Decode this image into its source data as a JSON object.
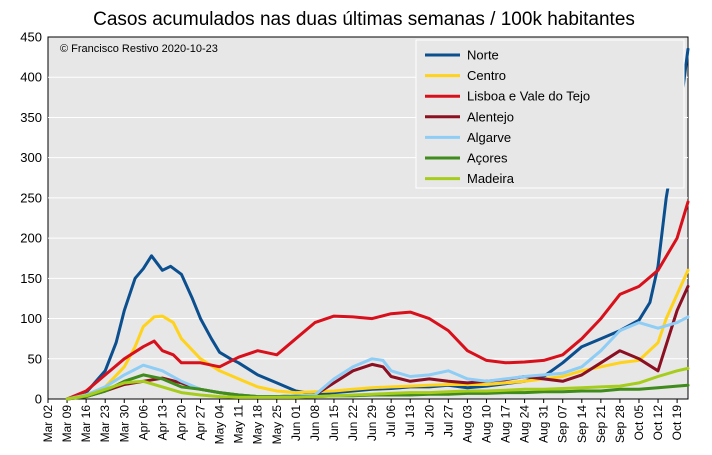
{
  "chart_data": {
    "type": "line",
    "title": "Casos acumulados nas duas últimas semanas / 100k habitantes",
    "annotation": "© Francisco Restivo 2020-10-23",
    "xlabel": "",
    "ylabel": "",
    "ylim": [
      0,
      450
    ],
    "yticks": [
      0,
      50,
      100,
      150,
      200,
      250,
      300,
      350,
      400,
      450
    ],
    "x_start": "2020-03-02",
    "x_end": "2020-10-23",
    "xtick_labels": [
      "Mar 02",
      "Mar 09",
      "Mar 16",
      "Mar 23",
      "Mar 30",
      "Apr 06",
      "Apr 13",
      "Apr 20",
      "Apr 27",
      "May 04",
      "May 11",
      "May 18",
      "May 25",
      "Jun 01",
      "Jun 08",
      "Jun 15",
      "Jun 22",
      "Jun 29",
      "Jul 06",
      "Jul 13",
      "Jul 20",
      "Jul 27",
      "Aug 03",
      "Aug 10",
      "Aug 17",
      "Aug 24",
      "Aug 31",
      "Sep 07",
      "Sep 14",
      "Sep 21",
      "Sep 28",
      "Oct 05",
      "Oct 12",
      "Oct 19"
    ],
    "grid": true,
    "legend_position": "top-right",
    "series": [
      {
        "name": "Norte",
        "color": "#0b4f8f",
        "x": [
          "2020-03-09",
          "2020-03-16",
          "2020-03-23",
          "2020-03-27",
          "2020-03-30",
          "2020-04-03",
          "2020-04-06",
          "2020-04-09",
          "2020-04-13",
          "2020-04-16",
          "2020-04-20",
          "2020-04-24",
          "2020-04-27",
          "2020-05-01",
          "2020-05-04",
          "2020-05-08",
          "2020-05-11",
          "2020-05-18",
          "2020-05-25",
          "2020-06-01",
          "2020-06-08",
          "2020-06-15",
          "2020-06-22",
          "2020-06-29",
          "2020-07-06",
          "2020-07-13",
          "2020-07-20",
          "2020-07-27",
          "2020-08-03",
          "2020-08-10",
          "2020-08-17",
          "2020-08-24",
          "2020-08-31",
          "2020-09-07",
          "2020-09-14",
          "2020-09-21",
          "2020-09-28",
          "2020-10-05",
          "2020-10-09",
          "2020-10-12",
          "2020-10-15",
          "2020-10-19",
          "2020-10-23"
        ],
        "values": [
          0,
          8,
          35,
          70,
          110,
          150,
          162,
          178,
          160,
          165,
          155,
          125,
          100,
          75,
          58,
          50,
          45,
          30,
          20,
          10,
          6,
          8,
          10,
          12,
          13,
          15,
          15,
          17,
          14,
          16,
          19,
          22,
          28,
          45,
          65,
          75,
          85,
          98,
          120,
          165,
          250,
          330,
          435
        ]
      },
      {
        "name": "Centro",
        "color": "#ffd21c",
        "x": [
          "2020-03-09",
          "2020-03-16",
          "2020-03-23",
          "2020-03-30",
          "2020-04-03",
          "2020-04-06",
          "2020-04-10",
          "2020-04-13",
          "2020-04-17",
          "2020-04-20",
          "2020-04-27",
          "2020-05-04",
          "2020-05-11",
          "2020-05-18",
          "2020-05-25",
          "2020-06-01",
          "2020-06-08",
          "2020-06-15",
          "2020-06-22",
          "2020-06-29",
          "2020-07-06",
          "2020-07-13",
          "2020-07-20",
          "2020-07-27",
          "2020-08-03",
          "2020-08-10",
          "2020-08-17",
          "2020-08-24",
          "2020-08-31",
          "2020-09-07",
          "2020-09-14",
          "2020-09-21",
          "2020-09-28",
          "2020-10-05",
          "2020-10-12",
          "2020-10-15",
          "2020-10-19",
          "2020-10-23"
        ],
        "values": [
          0,
          5,
          15,
          40,
          65,
          90,
          102,
          103,
          95,
          75,
          50,
          35,
          25,
          15,
          10,
          8,
          9,
          10,
          12,
          14,
          15,
          16,
          17,
          18,
          18,
          18,
          20,
          22,
          25,
          28,
          35,
          40,
          45,
          48,
          70,
          100,
          130,
          160
        ]
      },
      {
        "name": "Lisboa e Vale do Tejo",
        "color": "#d8101b",
        "x": [
          "2020-03-09",
          "2020-03-16",
          "2020-03-23",
          "2020-03-30",
          "2020-04-06",
          "2020-04-10",
          "2020-04-13",
          "2020-04-17",
          "2020-04-20",
          "2020-04-27",
          "2020-05-04",
          "2020-05-11",
          "2020-05-18",
          "2020-05-25",
          "2020-06-01",
          "2020-06-08",
          "2020-06-15",
          "2020-06-22",
          "2020-06-29",
          "2020-07-06",
          "2020-07-13",
          "2020-07-20",
          "2020-07-27",
          "2020-08-03",
          "2020-08-10",
          "2020-08-17",
          "2020-08-24",
          "2020-08-31",
          "2020-09-07",
          "2020-09-14",
          "2020-09-21",
          "2020-09-28",
          "2020-10-05",
          "2020-10-12",
          "2020-10-19",
          "2020-10-23"
        ],
        "values": [
          0,
          10,
          30,
          50,
          65,
          72,
          60,
          55,
          45,
          45,
          40,
          52,
          60,
          55,
          75,
          95,
          103,
          102,
          100,
          106,
          108,
          100,
          85,
          60,
          48,
          45,
          46,
          48,
          55,
          75,
          100,
          130,
          140,
          160,
          200,
          245
        ]
      },
      {
        "name": "Alentejo",
        "color": "#8b1022",
        "x": [
          "2020-03-09",
          "2020-03-16",
          "2020-03-23",
          "2020-03-30",
          "2020-04-06",
          "2020-04-13",
          "2020-04-20",
          "2020-04-27",
          "2020-05-04",
          "2020-05-11",
          "2020-05-18",
          "2020-05-25",
          "2020-06-01",
          "2020-06-08",
          "2020-06-15",
          "2020-06-22",
          "2020-06-29",
          "2020-07-03",
          "2020-07-06",
          "2020-07-13",
          "2020-07-20",
          "2020-07-27",
          "2020-08-03",
          "2020-08-10",
          "2020-08-17",
          "2020-08-24",
          "2020-08-31",
          "2020-09-07",
          "2020-09-14",
          "2020-09-21",
          "2020-09-28",
          "2020-10-05",
          "2020-10-12",
          "2020-10-19",
          "2020-10-23"
        ],
        "values": [
          0,
          3,
          10,
          18,
          22,
          26,
          20,
          12,
          8,
          5,
          3,
          3,
          4,
          5,
          20,
          35,
          43,
          40,
          28,
          22,
          25,
          22,
          20,
          22,
          24,
          28,
          25,
          22,
          30,
          45,
          60,
          50,
          35,
          110,
          140
        ]
      },
      {
        "name": "Algarve",
        "color": "#8ecdf5",
        "x": [
          "2020-03-09",
          "2020-03-16",
          "2020-03-23",
          "2020-03-30",
          "2020-04-06",
          "2020-04-13",
          "2020-04-20",
          "2020-04-27",
          "2020-05-04",
          "2020-05-11",
          "2020-05-18",
          "2020-05-25",
          "2020-06-01",
          "2020-06-08",
          "2020-06-15",
          "2020-06-22",
          "2020-06-29",
          "2020-07-03",
          "2020-07-06",
          "2020-07-13",
          "2020-07-20",
          "2020-07-27",
          "2020-08-03",
          "2020-08-10",
          "2020-08-17",
          "2020-08-24",
          "2020-08-31",
          "2020-09-07",
          "2020-09-14",
          "2020-09-21",
          "2020-09-28",
          "2020-10-05",
          "2020-10-12",
          "2020-10-19",
          "2020-10-23"
        ],
        "values": [
          0,
          5,
          15,
          30,
          42,
          35,
          22,
          12,
          8,
          5,
          3,
          3,
          4,
          5,
          25,
          40,
          50,
          48,
          35,
          28,
          30,
          35,
          25,
          22,
          25,
          28,
          30,
          32,
          40,
          60,
          85,
          95,
          88,
          95,
          102
        ]
      },
      {
        "name": "Açores",
        "color": "#3f8b1c",
        "x": [
          "2020-03-09",
          "2020-03-16",
          "2020-03-23",
          "2020-03-30",
          "2020-04-06",
          "2020-04-13",
          "2020-04-20",
          "2020-04-27",
          "2020-05-04",
          "2020-05-11",
          "2020-05-18",
          "2020-05-25",
          "2020-06-01",
          "2020-06-08",
          "2020-06-15",
          "2020-06-22",
          "2020-06-29",
          "2020-07-06",
          "2020-07-13",
          "2020-07-20",
          "2020-07-27",
          "2020-08-03",
          "2020-08-10",
          "2020-08-17",
          "2020-08-24",
          "2020-08-31",
          "2020-09-07",
          "2020-09-14",
          "2020-09-21",
          "2020-09-28",
          "2020-10-05",
          "2020-10-12",
          "2020-10-19",
          "2020-10-23"
        ],
        "values": [
          0,
          3,
          10,
          22,
          30,
          25,
          15,
          12,
          8,
          5,
          3,
          3,
          3,
          3,
          4,
          4,
          5,
          5,
          5,
          6,
          6,
          7,
          7,
          8,
          8,
          9,
          9,
          10,
          10,
          12,
          12,
          14,
          16,
          17
        ]
      },
      {
        "name": "Madeira",
        "color": "#a6cc1c",
        "x": [
          "2020-03-09",
          "2020-03-16",
          "2020-03-23",
          "2020-03-30",
          "2020-04-06",
          "2020-04-13",
          "2020-04-20",
          "2020-04-27",
          "2020-05-04",
          "2020-05-11",
          "2020-05-18",
          "2020-05-25",
          "2020-06-01",
          "2020-06-08",
          "2020-06-15",
          "2020-06-22",
          "2020-06-29",
          "2020-07-06",
          "2020-07-13",
          "2020-07-20",
          "2020-07-27",
          "2020-08-03",
          "2020-08-10",
          "2020-08-17",
          "2020-08-24",
          "2020-08-31",
          "2020-09-07",
          "2020-09-14",
          "2020-09-21",
          "2020-09-28",
          "2020-10-05",
          "2020-10-12",
          "2020-10-19",
          "2020-10-23"
        ],
        "values": [
          0,
          4,
          12,
          20,
          22,
          15,
          8,
          5,
          3,
          2,
          2,
          2,
          2,
          3,
          4,
          5,
          6,
          7,
          8,
          8,
          9,
          10,
          10,
          11,
          12,
          12,
          13,
          14,
          15,
          16,
          20,
          28,
          35,
          38
        ]
      }
    ]
  }
}
